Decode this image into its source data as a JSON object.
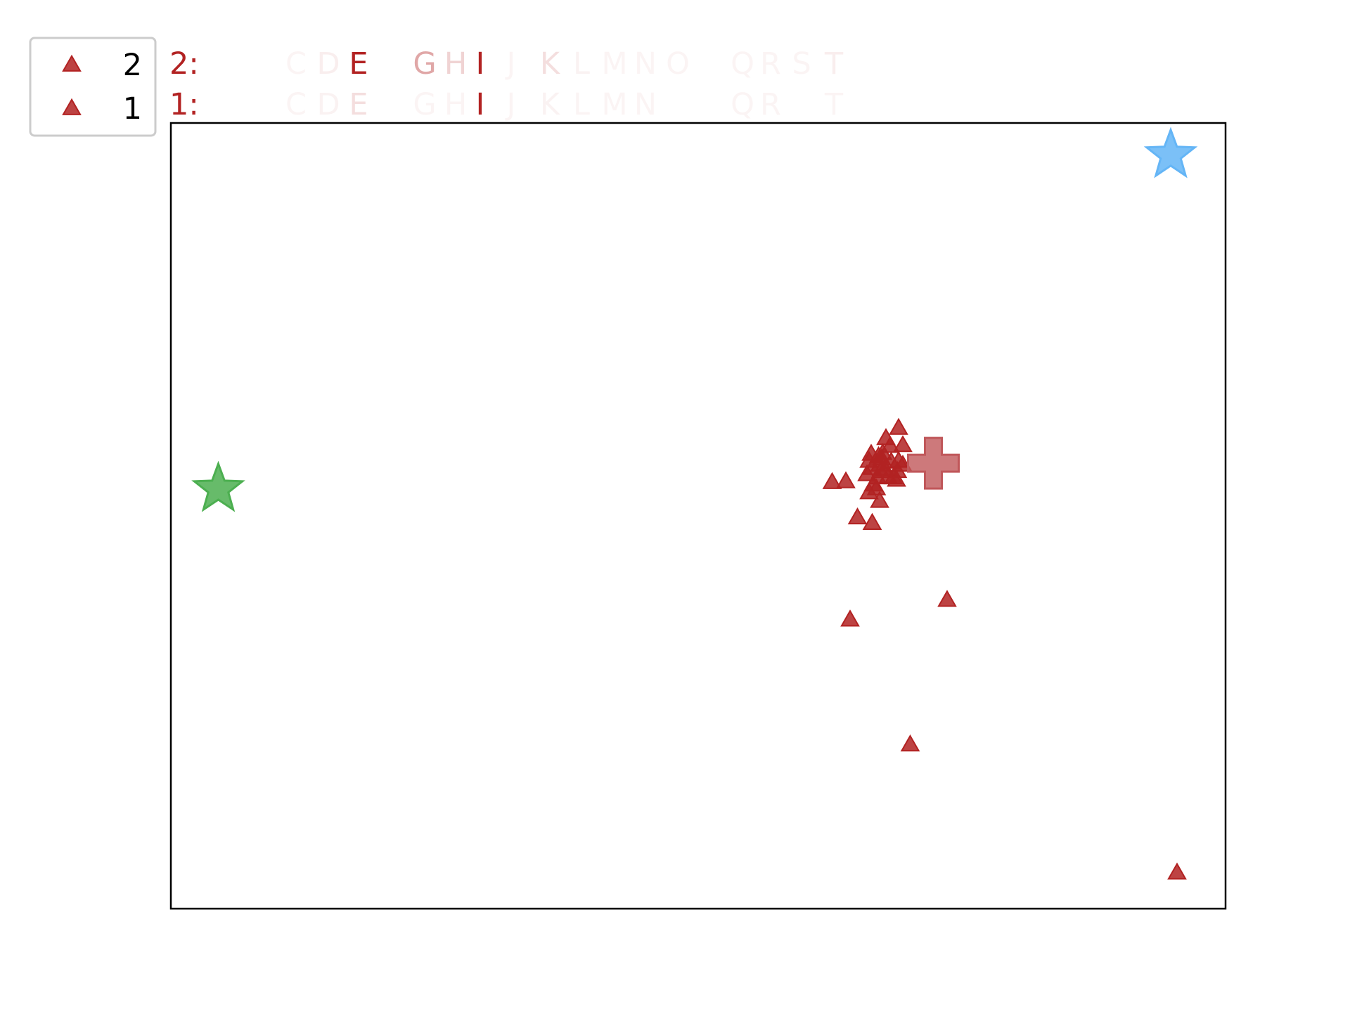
{
  "chart_data": {
    "type": "scatter",
    "title": "",
    "xlabel": "",
    "ylabel": "",
    "xlim": [
      0,
      100
    ],
    "ylim": [
      0,
      100
    ],
    "grid": false,
    "axis_ticks_visible": false,
    "legend": {
      "placement": "top-left, outside plot",
      "entries": [
        {
          "label": "2",
          "marker": "triangle",
          "color": "#b22222"
        },
        {
          "label": "1",
          "marker": "triangle",
          "color": "#b22222"
        }
      ]
    },
    "sequence_rows": [
      {
        "label": "2:",
        "letters": [
          {
            "char": "C",
            "opacity": 0.05
          },
          {
            "char": "D",
            "opacity": 0.08
          },
          {
            "char": "E",
            "opacity": 1.0
          },
          {
            "char": "G",
            "opacity": 0.4
          },
          {
            "char": "H",
            "opacity": 0.2
          },
          {
            "char": "I",
            "opacity": 1.0
          },
          {
            "char": "J",
            "opacity": 0.05
          },
          {
            "char": "K",
            "opacity": 0.15
          },
          {
            "char": "L",
            "opacity": 0.06
          },
          {
            "char": "M",
            "opacity": 0.05
          },
          {
            "char": "N",
            "opacity": 0.05
          },
          {
            "char": "O",
            "opacity": 0.05
          },
          {
            "char": "Q",
            "opacity": 0.05
          },
          {
            "char": "R",
            "opacity": 0.05
          },
          {
            "char": "S",
            "opacity": 0.05
          },
          {
            "char": "T",
            "opacity": 0.08
          }
        ]
      },
      {
        "label": "1:",
        "letters": [
          {
            "char": "C",
            "opacity": 0.05
          },
          {
            "char": "D",
            "opacity": 0.06
          },
          {
            "char": "E",
            "opacity": 0.15
          },
          {
            "char": "G",
            "opacity": 0.05
          },
          {
            "char": "H",
            "opacity": 0.05
          },
          {
            "char": "I",
            "opacity": 1.0
          },
          {
            "char": "J",
            "opacity": 0.05
          },
          {
            "char": "K",
            "opacity": 0.06
          },
          {
            "char": "L",
            "opacity": 0.05
          },
          {
            "char": "M",
            "opacity": 0.05
          },
          {
            "char": "N",
            "opacity": 0.05
          },
          {
            "char": "Q",
            "opacity": 0.05
          },
          {
            "char": "R",
            "opacity": 0.05
          },
          {
            "char": "T",
            "opacity": 0.05
          }
        ]
      }
    ],
    "series": [
      {
        "marker": "triangle",
        "color": "#b22222",
        "points": [
          [
            62.7,
            54.3
          ],
          [
            64.0,
            54.4
          ],
          [
            66.0,
            55.3
          ],
          [
            66.6,
            54.0
          ],
          [
            67.3,
            55.7
          ],
          [
            66.2,
            57.0
          ],
          [
            67.5,
            58.0
          ],
          [
            68.3,
            56.9
          ],
          [
            67.7,
            56.0
          ],
          [
            66.9,
            53.5
          ],
          [
            68.2,
            58.9
          ],
          [
            68.9,
            55.7
          ],
          [
            68.0,
            55.0
          ],
          [
            66.4,
            57.9
          ],
          [
            67.4,
            57.3
          ],
          [
            69.4,
            56.5
          ],
          [
            67.1,
            57.6
          ],
          [
            68.5,
            54.9
          ],
          [
            68.8,
            54.6
          ],
          [
            66.2,
            53.0
          ],
          [
            67.2,
            51.9
          ],
          [
            65.1,
            49.8
          ],
          [
            66.5,
            49.1
          ],
          [
            67.8,
            59.9
          ],
          [
            69.0,
            61.2
          ],
          [
            69.4,
            59.0
          ],
          [
            69.0,
            57.0
          ],
          [
            66.5,
            56.1
          ],
          [
            67.0,
            54.9
          ],
          [
            67.2,
            56.5
          ],
          [
            64.4,
            36.8
          ],
          [
            73.6,
            39.3
          ],
          [
            70.1,
            20.9
          ],
          [
            95.4,
            4.6
          ]
        ]
      }
    ],
    "special_markers": [
      {
        "name": "star-green",
        "marker": "star",
        "color": "#4caf50",
        "x": 4.5,
        "y": 53.4
      },
      {
        "name": "star-blue",
        "marker": "star",
        "color": "#64b5f6",
        "x": 94.8,
        "y": 95.9
      },
      {
        "name": "centroid-cross",
        "marker": "plus",
        "color": "#c0575a",
        "x": 72.3,
        "y": 56.7
      }
    ]
  }
}
